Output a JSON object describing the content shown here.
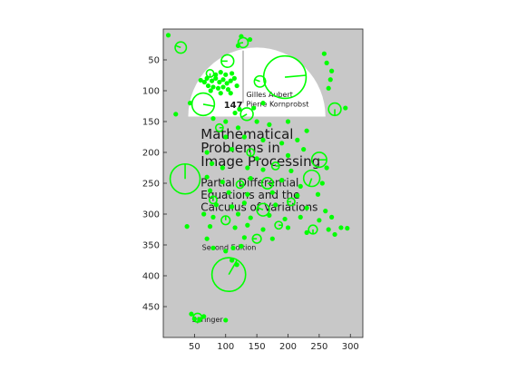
{
  "chart_data": {
    "type": "scatter",
    "title": "",
    "xlabel": "",
    "ylabel": "",
    "xlim": [
      0,
      320
    ],
    "ylim": [
      0,
      500
    ],
    "y_reversed": true,
    "grid": false,
    "x_ticks": [
      50,
      100,
      150,
      200,
      250,
      300
    ],
    "y_ticks": [
      50,
      100,
      150,
      200,
      250,
      300,
      350,
      400,
      450
    ],
    "image": {
      "background_color": "#c8c8c8",
      "panel_color": "#ffffff",
      "series_label": "147",
      "authors": [
        "Gilles Aubert",
        "Pierre Kornprobst"
      ],
      "title_lines": [
        "Mathematical",
        "Problems in",
        "Image Processing"
      ],
      "subtitle_lines": [
        "Partial Differential",
        "Equations and the",
        "Calculus of Variations"
      ],
      "edition": "Second Edition",
      "publisher": "Springer"
    },
    "series": [
      {
        "marker_color": "#00ff00",
        "keypoints": [
          {
            "x": 195,
            "y": 78,
            "r": 34,
            "angle": -5
          },
          {
            "x": 35,
            "y": 243,
            "r": 24,
            "angle": -90
          },
          {
            "x": 105,
            "y": 398,
            "r": 27,
            "angle": -60
          },
          {
            "x": 64,
            "y": 122,
            "r": 18,
            "angle": 10
          },
          {
            "x": 275,
            "y": 130,
            "r": 10,
            "angle": 90
          },
          {
            "x": 28,
            "y": 30,
            "r": 9,
            "angle": 200
          },
          {
            "x": 103,
            "y": 52,
            "r": 10,
            "angle": 180
          },
          {
            "x": 155,
            "y": 85,
            "r": 9,
            "angle": 200
          },
          {
            "x": 134,
            "y": 138,
            "r": 10,
            "angle": 150
          },
          {
            "x": 250,
            "y": 212,
            "r": 12,
            "angle": 0
          },
          {
            "x": 238,
            "y": 242,
            "r": 13,
            "angle": 110
          },
          {
            "x": 167,
            "y": 250,
            "r": 9,
            "angle": 10
          },
          {
            "x": 160,
            "y": 293,
            "r": 10,
            "angle": 200
          },
          {
            "x": 128,
            "y": 22,
            "r": 8,
            "angle": 170
          },
          {
            "x": 75,
            "y": 72,
            "r": 6,
            "angle": 90
          },
          {
            "x": 150,
            "y": 340,
            "r": 7,
            "angle": 180
          },
          {
            "x": 55,
            "y": 468,
            "r": 7,
            "angle": 0
          },
          {
            "x": 180,
            "y": 222,
            "r": 6,
            "angle": 0
          },
          {
            "x": 123,
            "y": 252,
            "r": 6,
            "angle": 0
          },
          {
            "x": 205,
            "y": 280,
            "r": 6,
            "angle": 180
          },
          {
            "x": 100,
            "y": 310,
            "r": 7,
            "angle": 270
          },
          {
            "x": 240,
            "y": 325,
            "r": 7,
            "angle": 90
          },
          {
            "x": 90,
            "y": 160,
            "r": 6,
            "angle": 0
          },
          {
            "x": 140,
            "y": 200,
            "r": 6,
            "angle": 90
          },
          {
            "x": 80,
            "y": 277,
            "r": 6,
            "angle": 270
          },
          {
            "x": 185,
            "y": 318,
            "r": 6,
            "angle": 0
          }
        ],
        "points": [
          {
            "x": 8,
            "y": 10
          },
          {
            "x": 125,
            "y": 12
          },
          {
            "x": 139,
            "y": 17
          },
          {
            "x": 120,
            "y": 27
          },
          {
            "x": 258,
            "y": 40
          },
          {
            "x": 262,
            "y": 55
          },
          {
            "x": 270,
            "y": 68
          },
          {
            "x": 268,
            "y": 82
          },
          {
            "x": 265,
            "y": 96
          },
          {
            "x": 292,
            "y": 128
          },
          {
            "x": 43,
            "y": 120
          },
          {
            "x": 20,
            "y": 138
          },
          {
            "x": 60,
            "y": 83
          },
          {
            "x": 66,
            "y": 86
          },
          {
            "x": 70,
            "y": 80
          },
          {
            "x": 78,
            "y": 84
          },
          {
            "x": 84,
            "y": 80
          },
          {
            "x": 90,
            "y": 86
          },
          {
            "x": 96,
            "y": 82
          },
          {
            "x": 102,
            "y": 88
          },
          {
            "x": 108,
            "y": 84
          },
          {
            "x": 114,
            "y": 80
          },
          {
            "x": 72,
            "y": 92
          },
          {
            "x": 80,
            "y": 94
          },
          {
            "x": 88,
            "y": 96
          },
          {
            "x": 96,
            "y": 94
          },
          {
            "x": 104,
            "y": 98
          },
          {
            "x": 84,
            "y": 74
          },
          {
            "x": 92,
            "y": 70
          },
          {
            "x": 100,
            "y": 74
          },
          {
            "x": 110,
            "y": 72
          },
          {
            "x": 76,
            "y": 100
          },
          {
            "x": 108,
            "y": 104
          },
          {
            "x": 118,
            "y": 92
          },
          {
            "x": 92,
            "y": 104
          },
          {
            "x": 115,
            "y": 136
          },
          {
            "x": 122,
            "y": 130
          },
          {
            "x": 145,
            "y": 128
          },
          {
            "x": 160,
            "y": 120
          },
          {
            "x": 80,
            "y": 145
          },
          {
            "x": 100,
            "y": 150
          },
          {
            "x": 120,
            "y": 160
          },
          {
            "x": 150,
            "y": 150
          },
          {
            "x": 170,
            "y": 155
          },
          {
            "x": 200,
            "y": 150
          },
          {
            "x": 230,
            "y": 165
          },
          {
            "x": 100,
            "y": 175
          },
          {
            "x": 130,
            "y": 175
          },
          {
            "x": 160,
            "y": 180
          },
          {
            "x": 190,
            "y": 185
          },
          {
            "x": 215,
            "y": 180
          },
          {
            "x": 70,
            "y": 200
          },
          {
            "x": 110,
            "y": 195
          },
          {
            "x": 150,
            "y": 210
          },
          {
            "x": 200,
            "y": 205
          },
          {
            "x": 225,
            "y": 195
          },
          {
            "x": 78,
            "y": 218
          },
          {
            "x": 95,
            "y": 225
          },
          {
            "x": 135,
            "y": 225
          },
          {
            "x": 160,
            "y": 228
          },
          {
            "x": 205,
            "y": 230
          },
          {
            "x": 262,
            "y": 225
          },
          {
            "x": 70,
            "y": 240
          },
          {
            "x": 95,
            "y": 248
          },
          {
            "x": 140,
            "y": 242
          },
          {
            "x": 190,
            "y": 245
          },
          {
            "x": 220,
            "y": 255
          },
          {
            "x": 255,
            "y": 250
          },
          {
            "x": 75,
            "y": 262
          },
          {
            "x": 105,
            "y": 265
          },
          {
            "x": 135,
            "y": 268
          },
          {
            "x": 175,
            "y": 265
          },
          {
            "x": 215,
            "y": 270
          },
          {
            "x": 248,
            "y": 268
          },
          {
            "x": 85,
            "y": 285
          },
          {
            "x": 110,
            "y": 288
          },
          {
            "x": 130,
            "y": 282
          },
          {
            "x": 180,
            "y": 285
          },
          {
            "x": 230,
            "y": 290
          },
          {
            "x": 260,
            "y": 295
          },
          {
            "x": 65,
            "y": 300
          },
          {
            "x": 80,
            "y": 305
          },
          {
            "x": 120,
            "y": 300
          },
          {
            "x": 140,
            "y": 306
          },
          {
            "x": 170,
            "y": 302
          },
          {
            "x": 195,
            "y": 308
          },
          {
            "x": 220,
            "y": 305
          },
          {
            "x": 250,
            "y": 310
          },
          {
            "x": 270,
            "y": 305
          },
          {
            "x": 75,
            "y": 320
          },
          {
            "x": 115,
            "y": 322
          },
          {
            "x": 135,
            "y": 318
          },
          {
            "x": 160,
            "y": 325
          },
          {
            "x": 200,
            "y": 322
          },
          {
            "x": 230,
            "y": 330
          },
          {
            "x": 265,
            "y": 325
          },
          {
            "x": 285,
            "y": 322
          },
          {
            "x": 295,
            "y": 323
          },
          {
            "x": 275,
            "y": 333
          },
          {
            "x": 38,
            "y": 320
          },
          {
            "x": 70,
            "y": 340
          },
          {
            "x": 130,
            "y": 338
          },
          {
            "x": 175,
            "y": 340
          },
          {
            "x": 80,
            "y": 355
          },
          {
            "x": 100,
            "y": 360
          },
          {
            "x": 112,
            "y": 355
          },
          {
            "x": 125,
            "y": 352
          },
          {
            "x": 110,
            "y": 375
          },
          {
            "x": 118,
            "y": 382
          },
          {
            "x": 45,
            "y": 462
          },
          {
            "x": 50,
            "y": 470
          },
          {
            "x": 58,
            "y": 472
          },
          {
            "x": 65,
            "y": 466
          },
          {
            "x": 100,
            "y": 472
          }
        ]
      }
    ]
  }
}
